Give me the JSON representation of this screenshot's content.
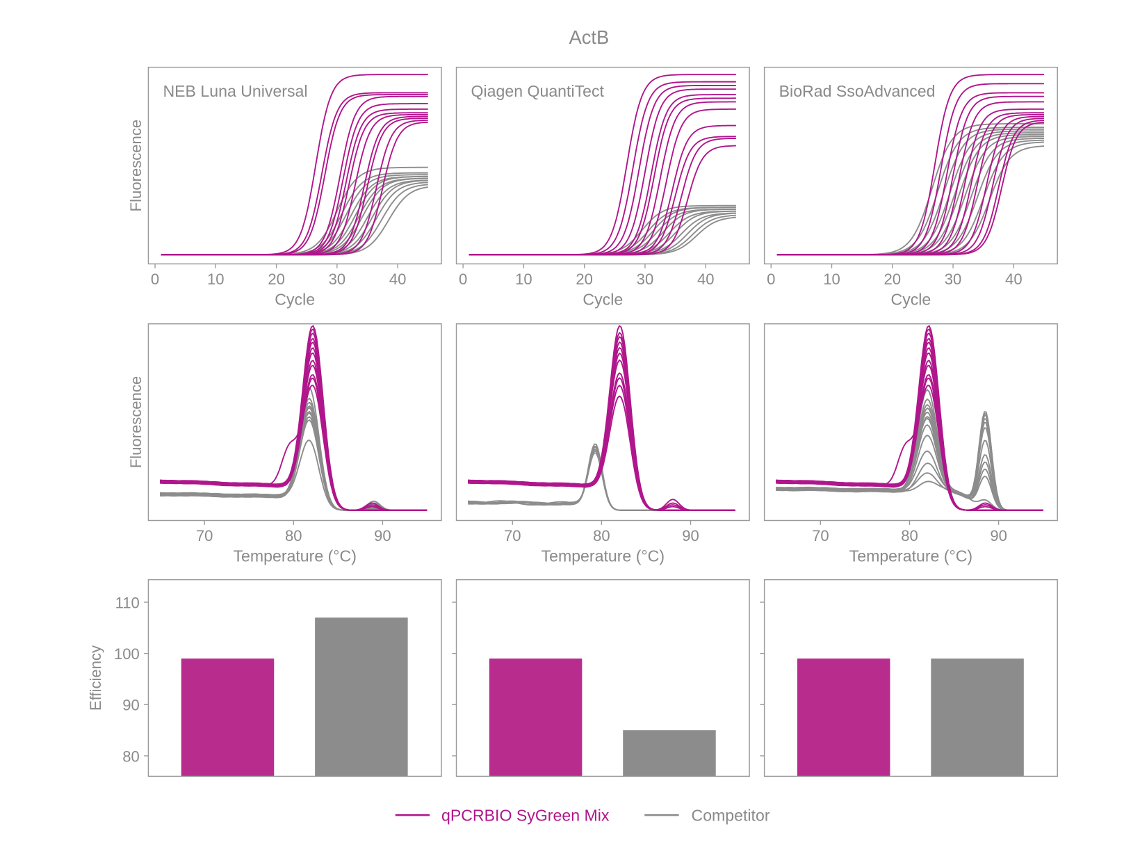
{
  "title": "ActB",
  "colors": {
    "sygreen": "#b0168c",
    "sygreen_bar": "#b82c8e",
    "competitor": "#8c8c8c",
    "text": "#8a8a8a",
    "frame": "#9a9a9a"
  },
  "legend": [
    {
      "label": "qPCRBIO SyGreen Mix",
      "color": "#b0168c"
    },
    {
      "label": "Competitor",
      "color": "#8c8c8c"
    }
  ],
  "chart_data": [
    {
      "type": "line",
      "kind": "amplification",
      "panel_label": "NEB Luna Universal",
      "xlabel": "Cycle",
      "ylabel": "Fluorescence",
      "xlim": [
        -1.1,
        47.2
      ],
      "ylim": [
        -0.05,
        1.03
      ],
      "xticks": [
        0,
        10,
        20,
        30,
        40
      ],
      "cycles": [
        1,
        45
      ],
      "grid": false,
      "series": [
        {
          "name": "Competitor",
          "ct": [
            30,
            30.8,
            31.5,
            32.3,
            33,
            33.6,
            34.2,
            35,
            35.8,
            36.5,
            37.4,
            38.5
          ],
          "plateau": [
            0.48,
            0.45,
            0.44,
            0.43,
            0.43,
            0.42,
            0.42,
            0.41,
            0.41,
            0.4,
            0.39,
            0.38
          ]
        },
        {
          "name": "qPCRBIO SyGreen Mix",
          "ct": [
            26.5,
            27.5,
            28,
            30.5,
            31,
            31.5,
            32,
            33,
            34.5,
            35,
            36.5,
            37.5
          ],
          "plateau": [
            0.99,
            0.89,
            0.88,
            0.87,
            0.83,
            0.8,
            0.78,
            0.77,
            0.76,
            0.75,
            0.74,
            0.73
          ]
        }
      ]
    },
    {
      "type": "line",
      "kind": "amplification",
      "panel_label": "Qiagen QuantiTect",
      "xlabel": "Cycle",
      "ylabel": "",
      "xlim": [
        -1.1,
        47.2
      ],
      "ylim": [
        -0.05,
        1.03
      ],
      "xticks": [
        0,
        10,
        20,
        30,
        40
      ],
      "cycles": [
        1,
        45
      ],
      "grid": false,
      "series": [
        {
          "name": "Competitor",
          "ct": [
            29.5,
            30.5,
            31.3,
            32,
            33,
            34,
            35,
            36,
            37,
            37.8,
            38.5
          ],
          "plateau": [
            0.27,
            0.26,
            0.26,
            0.25,
            0.25,
            0.24,
            0.24,
            0.23,
            0.23,
            0.22,
            0.21
          ]
        },
        {
          "name": "qPCRBIO SyGreen Mix",
          "ct": [
            27,
            28,
            29,
            30,
            31,
            31.5,
            32.5,
            33.5,
            34.5,
            35,
            36,
            37
          ],
          "plateau": [
            0.99,
            0.95,
            0.93,
            0.91,
            0.88,
            0.86,
            0.84,
            0.8,
            0.71,
            0.65,
            0.64,
            0.6
          ]
        }
      ]
    },
    {
      "type": "line",
      "kind": "amplification",
      "panel_label": "BioRad SsoAdvanced",
      "xlabel": "Cycle",
      "ylabel": "",
      "xlim": [
        -1.1,
        47.2
      ],
      "ylim": [
        -0.05,
        1.03
      ],
      "xticks": [
        0,
        10,
        20,
        30,
        40
      ],
      "cycles": [
        1,
        45
      ],
      "grid": false,
      "series": [
        {
          "name": "Competitor",
          "ct": [
            26.5,
            27.5,
            28.5,
            29.5,
            30.3,
            31,
            32,
            33,
            34,
            35,
            36
          ],
          "plateau": [
            0.72,
            0.7,
            0.69,
            0.68,
            0.67,
            0.66,
            0.65,
            0.64,
            0.63,
            0.62,
            0.6
          ]
        },
        {
          "name": "qPCRBIO SyGreen Mix",
          "ct": [
            27,
            28,
            29,
            30,
            31,
            32,
            33,
            34,
            35.5,
            36.5,
            37.5,
            38
          ],
          "plateau": [
            0.99,
            0.94,
            0.89,
            0.87,
            0.84,
            0.8,
            0.78,
            0.77,
            0.76,
            0.75,
            0.74,
            0.73
          ]
        }
      ]
    },
    {
      "type": "line",
      "kind": "melt",
      "xlabel": "Temperature (°C)",
      "ylabel": "Fluorescence",
      "xlim": [
        63.7,
        96.6
      ],
      "ylim": [
        -0.056,
        1.028
      ],
      "xticks": [
        70,
        80,
        90
      ],
      "temperature": [
        65,
        95
      ],
      "grid": false,
      "series": [
        {
          "name": "Competitor",
          "tm": 81.8,
          "baseline": [
            0.09,
            0.075
          ],
          "peak_height": [
            0.66,
            0.6,
            0.58,
            0.56,
            0.55,
            0.53,
            0.52,
            0.5,
            0.48,
            0.37
          ],
          "second_peak": {
            "temp": 89,
            "height": [
              0.05,
              0.04,
              0.03,
              0.02,
              0.02,
              0.01,
              0.01,
              0.01,
              0.01,
              0.01
            ]
          }
        },
        {
          "name": "qPCRBIO SyGreen Mix",
          "tm": 82.2,
          "baseline": [
            0.16,
            0.13
          ],
          "peak_height": [
            0.99,
            0.97,
            0.95,
            0.92,
            0.9,
            0.87,
            0.84,
            0.8,
            0.77,
            0.72,
            0.7,
            0.66
          ],
          "shoulder": {
            "temp": 79.5,
            "height": [
              0,
              0,
              0,
              0,
              0,
              0,
              0,
              0,
              0,
              0,
              0,
              0.2
            ]
          },
          "second_peak": {
            "temp": 88.8,
            "height": [
              0,
              0,
              0,
              0,
              0,
              0,
              0,
              0,
              0,
              0.03,
              0.02,
              0.04
            ]
          }
        }
      ]
    },
    {
      "type": "line",
      "kind": "melt",
      "xlabel": "Temperature (°C)",
      "ylabel": "",
      "xlim": [
        63.7,
        96.6
      ],
      "ylim": [
        -0.056,
        1.028
      ],
      "xticks": [
        70,
        80,
        90
      ],
      "temperature": [
        65,
        95
      ],
      "grid": false,
      "series": [
        {
          "name": "Competitor",
          "tm": 79.3,
          "baseline": [
            0.045,
            0.035
          ],
          "peak_height": [
            0.36,
            0.35,
            0.34,
            0.33,
            0.32,
            0.31
          ]
        },
        {
          "name": "qPCRBIO SyGreen Mix",
          "tm": 82.1,
          "baseline": [
            0.16,
            0.13
          ],
          "peak_height": [
            0.99,
            0.95,
            0.93,
            0.9,
            0.87,
            0.84,
            0.8,
            0.73,
            0.7,
            0.66,
            0.6
          ],
          "second_peak": {
            "temp": 88,
            "height": [
              0,
              0,
              0,
              0,
              0,
              0,
              0,
              0.04,
              0.06,
              0.03,
              0.02
            ]
          }
        }
      ]
    },
    {
      "type": "line",
      "kind": "melt",
      "xlabel": "Temperature (°C)",
      "ylabel": "",
      "xlim": [
        63.7,
        96.6
      ],
      "ylim": [
        -0.056,
        1.028
      ],
      "xticks": [
        70,
        80,
        90
      ],
      "temperature": [
        65,
        95
      ],
      "grid": false,
      "series": [
        {
          "name": "Competitor",
          "tm": 82,
          "baseline": [
            0.12,
            0.1
          ],
          "peak_height": [
            0.56,
            0.5,
            0.48,
            0.46,
            0.44,
            0.42,
            0.4,
            0.37,
            0.3,
            0.22,
            0.15,
            0.1,
            0.06
          ],
          "second_peak": {
            "temp": 88.5,
            "height": [
              0.05,
              0.18,
              0.22,
              0.26,
              0.3,
              0.38,
              0.45,
              0.48,
              0.5,
              0.52,
              0.54,
              0.52,
              0.53
            ]
          }
        },
        {
          "name": "qPCRBIO SyGreen Mix",
          "tm": 82.2,
          "baseline": [
            0.16,
            0.13
          ],
          "peak_height": [
            0.99,
            0.97,
            0.95,
            0.92,
            0.9,
            0.87,
            0.84,
            0.8,
            0.77,
            0.72,
            0.7,
            0.66
          ],
          "shoulder": {
            "temp": 79.5,
            "height": [
              0,
              0,
              0,
              0,
              0,
              0,
              0,
              0,
              0,
              0,
              0,
              0.2
            ]
          },
          "second_peak": {
            "temp": 88.5,
            "height": [
              0,
              0,
              0,
              0,
              0,
              0,
              0,
              0,
              0,
              0.02,
              0.03,
              0.04
            ]
          }
        }
      ]
    },
    {
      "type": "bar",
      "ylabel": "Efficiency",
      "categories": [
        "qPCRBIO SyGreen Mix",
        "Competitor"
      ],
      "values": [
        99,
        107
      ],
      "ylim": [
        76,
        114.4
      ],
      "yticks": [
        80,
        90,
        100,
        110
      ],
      "grid": false
    },
    {
      "type": "bar",
      "ylabel": "",
      "categories": [
        "qPCRBIO SyGreen Mix",
        "Competitor"
      ],
      "values": [
        99,
        85
      ],
      "ylim": [
        76,
        114.4
      ],
      "yticks": [
        80,
        90,
        100,
        110
      ],
      "grid": false
    },
    {
      "type": "bar",
      "ylabel": "",
      "categories": [
        "qPCRBIO SyGreen Mix",
        "Competitor"
      ],
      "values": [
        99,
        99
      ],
      "ylim": [
        76,
        114.4
      ],
      "yticks": [
        80,
        90,
        100,
        110
      ],
      "grid": false
    }
  ]
}
